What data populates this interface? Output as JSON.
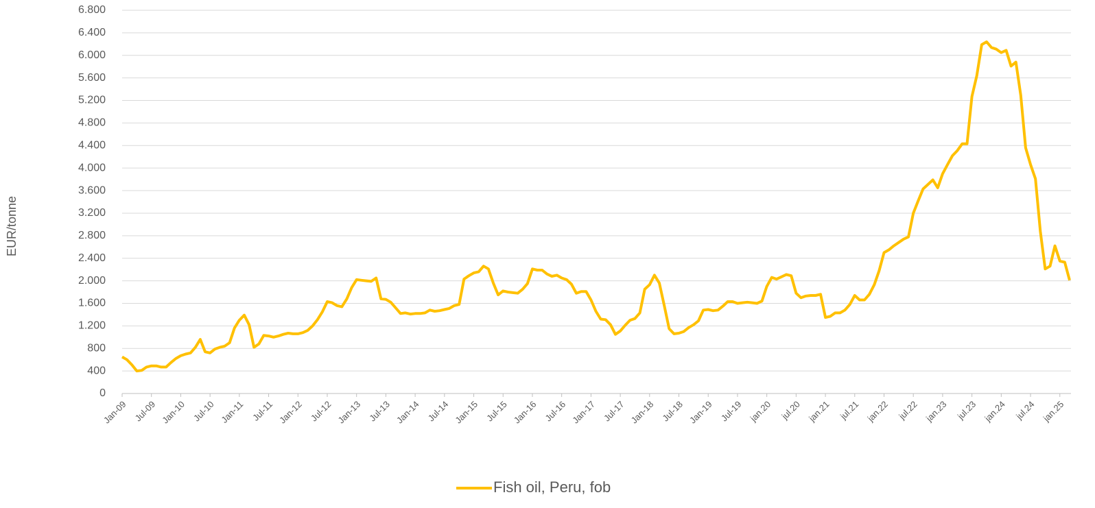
{
  "chart_data": {
    "type": "line",
    "y_label": "EUR/tonne",
    "categories": [
      "Jan-09",
      null,
      null,
      null,
      null,
      null,
      "Jul-09",
      null,
      null,
      null,
      null,
      null,
      "Jan-10",
      null,
      null,
      null,
      null,
      null,
      "Jul-10",
      null,
      null,
      null,
      null,
      null,
      "Jan-11",
      null,
      null,
      null,
      null,
      null,
      "Jul-11",
      null,
      null,
      null,
      null,
      null,
      "Jan-12",
      null,
      null,
      null,
      null,
      null,
      "Jul-12",
      null,
      null,
      null,
      null,
      null,
      "Jan-13",
      null,
      null,
      null,
      null,
      null,
      "Jul-13",
      null,
      null,
      null,
      null,
      null,
      "Jan-14",
      null,
      null,
      null,
      null,
      null,
      "Jul-14",
      null,
      null,
      null,
      null,
      null,
      "Jan-15",
      null,
      null,
      null,
      null,
      null,
      "Jul-15",
      null,
      null,
      null,
      null,
      null,
      "Jan-16",
      null,
      null,
      null,
      null,
      null,
      "Jul-16",
      null,
      null,
      null,
      null,
      null,
      "Jan-17",
      null,
      null,
      null,
      null,
      null,
      "Jul-17",
      null,
      null,
      null,
      null,
      null,
      "Jan-18",
      null,
      null,
      null,
      null,
      null,
      "Jul-18",
      null,
      null,
      null,
      null,
      null,
      "Jan-19",
      null,
      null,
      null,
      null,
      null,
      "Jul-19",
      null,
      null,
      null,
      null,
      null,
      "jan.20",
      null,
      null,
      null,
      null,
      null,
      "jul.20",
      null,
      null,
      null,
      null,
      null,
      "jan.21",
      null,
      null,
      null,
      null,
      null,
      "jul.21",
      null,
      null,
      null,
      null,
      null,
      "jan.22",
      null,
      null,
      null,
      null,
      null,
      "jul.22",
      null,
      null,
      null,
      null,
      null,
      "jan.23",
      null,
      null,
      null,
      null,
      null,
      "jul.23",
      null,
      null,
      null,
      null,
      null,
      "jan.24",
      null,
      null,
      null,
      null,
      null,
      "jul.24",
      null,
      null,
      null,
      null,
      null,
      "jan.25",
      null,
      null
    ],
    "series": [
      {
        "name": "Fish oil, Peru, fob",
        "color": "#ffc000",
        "values": [
          650,
          600,
          510,
          400,
          410,
          470,
          490,
          490,
          470,
          470,
          550,
          620,
          670,
          700,
          720,
          820,
          960,
          740,
          720,
          790,
          820,
          840,
          900,
          1160,
          1300,
          1390,
          1220,
          820,
          880,
          1030,
          1020,
          1000,
          1020,
          1050,
          1070,
          1060,
          1060,
          1080,
          1120,
          1200,
          1310,
          1450,
          1630,
          1610,
          1560,
          1540,
          1680,
          1880,
          2020,
          2010,
          2000,
          1990,
          2050,
          1680,
          1670,
          1620,
          1520,
          1420,
          1430,
          1410,
          1420,
          1420,
          1430,
          1480,
          1460,
          1470,
          1490,
          1510,
          1560,
          1580,
          2030,
          2090,
          2140,
          2160,
          2260,
          2210,
          1960,
          1750,
          1820,
          1800,
          1790,
          1780,
          1850,
          1950,
          2210,
          2190,
          2190,
          2120,
          2080,
          2100,
          2050,
          2020,
          1940,
          1780,
          1810,
          1810,
          1660,
          1460,
          1320,
          1310,
          1220,
          1050,
          1110,
          1210,
          1300,
          1330,
          1430,
          1850,
          1930,
          2100,
          1960,
          1560,
          1150,
          1060,
          1070,
          1100,
          1170,
          1220,
          1290,
          1480,
          1490,
          1470,
          1480,
          1550,
          1630,
          1630,
          1600,
          1610,
          1620,
          1610,
          1600,
          1640,
          1900,
          2060,
          2030,
          2070,
          2110,
          2090,
          1780,
          1700,
          1730,
          1740,
          1740,
          1760,
          1350,
          1370,
          1430,
          1430,
          1480,
          1580,
          1740,
          1660,
          1660,
          1760,
          1930,
          2180,
          2500,
          2550,
          2620,
          2680,
          2740,
          2780,
          3200,
          3420,
          3630,
          3710,
          3790,
          3650,
          3900,
          4060,
          4220,
          4310,
          4430,
          4430,
          5270,
          5640,
          6190,
          6240,
          6140,
          6110,
          6050,
          6090,
          5810,
          5880,
          5290,
          4360,
          4060,
          3810,
          2880,
          2210,
          2260,
          2620,
          2350,
          2330,
          2010
        ]
      }
    ],
    "ylim": [
      0,
      6800
    ],
    "yticks": [
      0,
      400,
      800,
      {
        "value": 1200,
        "label": "1.200"
      },
      {
        "value": 1600,
        "label": "1.600"
      },
      {
        "value": 2000,
        "label": "2.000"
      },
      {
        "value": 2400,
        "label": "2.400"
      },
      {
        "value": 2800,
        "label": "2.800"
      },
      {
        "value": 3200,
        "label": "3.200"
      },
      {
        "value": 3600,
        "label": "3.600"
      },
      {
        "value": 4000,
        "label": "4.000"
      },
      {
        "value": 4400,
        "label": "4.400"
      },
      {
        "value": 4800,
        "label": "4.800"
      },
      {
        "value": 5200,
        "label": "5.200"
      },
      {
        "value": 5600,
        "label": "5.600"
      },
      {
        "value": 6000,
        "label": "6.000"
      },
      {
        "value": 6400,
        "label": "6.400"
      },
      {
        "value": 6800,
        "label": "6.800"
      }
    ],
    "grid": true,
    "legend": "bottom"
  }
}
